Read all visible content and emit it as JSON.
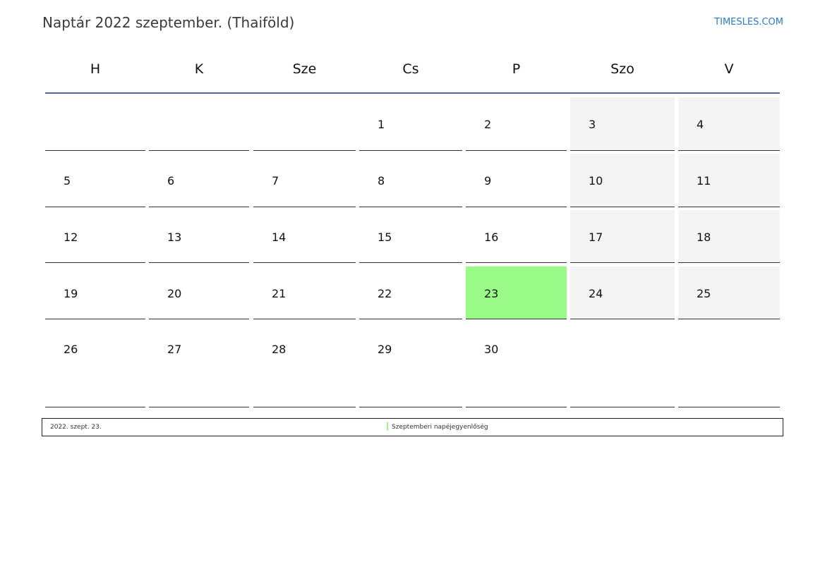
{
  "title": "Naptár 2022 szeptember. (Thaiföld)",
  "brand": "TIMESLES.COM",
  "colors": {
    "weekend": "#f4f4f4",
    "holiday": "#99fa88",
    "header_line": "#4a6d99",
    "brand": "#2b7bc4"
  },
  "weekdays": [
    "H",
    "K",
    "Sze",
    "Cs",
    "P",
    "Szo",
    "V"
  ],
  "weeks": [
    [
      "",
      "",
      "",
      "1",
      "2",
      "3",
      "4"
    ],
    [
      "5",
      "6",
      "7",
      "8",
      "9",
      "10",
      "11"
    ],
    [
      "12",
      "13",
      "14",
      "15",
      "16",
      "17",
      "18"
    ],
    [
      "19",
      "20",
      "21",
      "22",
      "23",
      "24",
      "25"
    ],
    [
      "26",
      "27",
      "28",
      "29",
      "30",
      "",
      ""
    ]
  ],
  "holidays": [
    {
      "day": "23",
      "date": "2022. szept. 23.",
      "name": "Szeptemberi napéjegyenlőség"
    }
  ]
}
